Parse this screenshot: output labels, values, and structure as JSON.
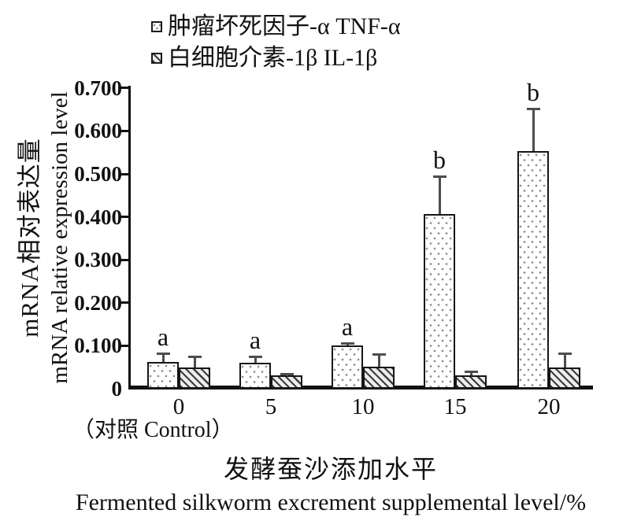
{
  "legend": {
    "items": [
      {
        "label": "肿瘤坏死因子-α TNF-α",
        "pattern": "dots",
        "marker": "dotted-square-icon"
      },
      {
        "label": "白细胞介素-1β IL-1β",
        "pattern": "hatch",
        "marker": "hatched-square-icon"
      }
    ]
  },
  "axes": {
    "y_title_zh": "mRNA相对表达量",
    "y_title_en": "mRNA relative expression level",
    "x_title_zh": "发酵蚕沙添加水平",
    "x_title_en": "Fermented silkworm excrement supplemental level/%",
    "x_note": "（对照 Control）",
    "y_ticks": [
      "0.700",
      "0.600",
      "0.500",
      "0.400",
      "0.300",
      "0.200",
      "0.100",
      "0"
    ],
    "x_ticks": [
      "0",
      "5",
      "10",
      "15",
      "20"
    ]
  },
  "chart_data": {
    "type": "bar",
    "title": "",
    "categories": [
      "0",
      "5",
      "10",
      "15",
      "20"
    ],
    "control_note": "（对照 Control）",
    "xlabel": "发酵蚕沙添加水平 Fermented silkworm excrement supplemental level/%",
    "ylabel": "mRNA相对表达量 mRNA relative expression level",
    "ylim": [
      0,
      0.7
    ],
    "y_tick_step": 0.1,
    "grid": false,
    "legend_position": "top",
    "error_bars": "upper only",
    "series": [
      {
        "name": "肿瘤坏死因子-α TNF-α",
        "pattern": "dots",
        "values": [
          0.063,
          0.061,
          0.1,
          0.407,
          0.553
        ],
        "errors_up": [
          0.021,
          0.016,
          0.008,
          0.089,
          0.101
        ],
        "sig_letters": [
          "a",
          "a",
          "a",
          "b",
          "b"
        ]
      },
      {
        "name": "白细胞介素-1β IL-1β",
        "pattern": "hatch",
        "values": [
          0.05,
          0.031,
          0.051,
          0.031,
          0.049
        ],
        "errors_up": [
          0.027,
          0.006,
          0.031,
          0.012,
          0.036
        ],
        "sig_letters": [
          "",
          "",
          "",
          "",
          ""
        ]
      }
    ],
    "colors": {
      "bar_border": "#161616",
      "error_bar": "#4d4d4d",
      "axis": "#111111",
      "background": "#ffffff"
    }
  }
}
